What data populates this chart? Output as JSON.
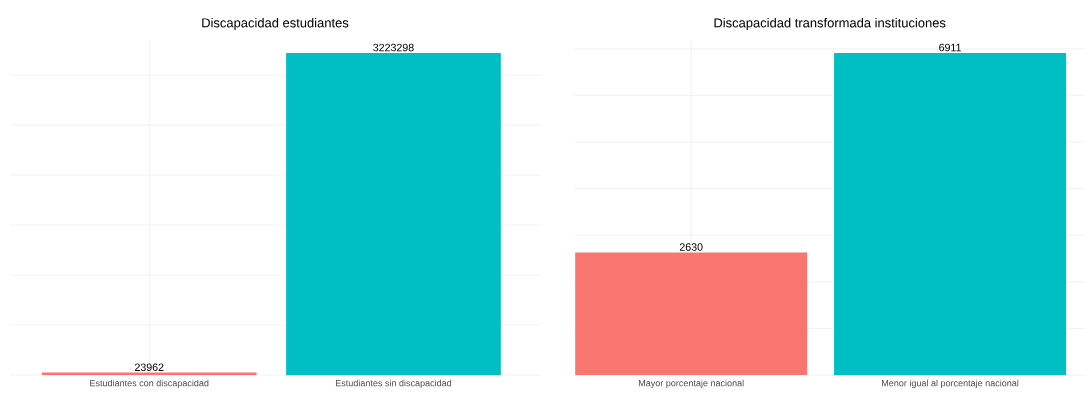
{
  "chart_data": [
    {
      "type": "bar",
      "title": "Discapacidad estudiantes",
      "categories": [
        "Estudiantes con discapacidad",
        "Estudiantes sin discapacidad"
      ],
      "values": [
        23962,
        3223298
      ],
      "colors": [
        "#f8766d",
        "#00bfc4"
      ],
      "data_labels": true,
      "grid": true,
      "tick_labels": "x"
    },
    {
      "type": "bar",
      "title": "Discapacidad transformada instituciones",
      "categories": [
        "Mayor porcentaje nacional",
        "Menor igual al porcentaje nacional"
      ],
      "values": [
        2630,
        6911
      ],
      "colors": [
        "#f8766d",
        "#00bfc4"
      ],
      "data_labels": true,
      "grid": true,
      "tick_labels": "x"
    }
  ]
}
